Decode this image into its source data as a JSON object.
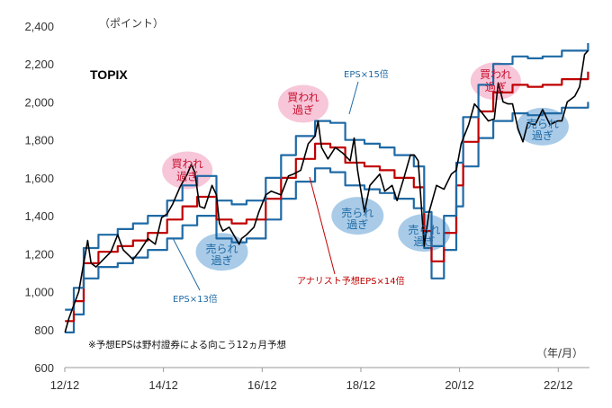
{
  "chart_data": {
    "type": "line",
    "title": "TOPIX",
    "unit_label": "（ポイント）",
    "x_unit_label": "（年/月）",
    "note": "※予想EPSは野村證券による向こう12ヵ月予想",
    "x_ticks": [
      "12/12",
      "14/12",
      "16/12",
      "18/12",
      "20/12",
      "22/12"
    ],
    "y_ticks": [
      "600",
      "800",
      "1,000",
      "1,200",
      "1,400",
      "1,600",
      "1,800",
      "2,000",
      "2,200",
      "2,400"
    ],
    "ylim": [
      600,
      2400
    ],
    "xlim": [
      2012.917,
      2023.55
    ],
    "colors": {
      "topix": "#000000",
      "eps15": "#1f6aa5",
      "eps14": "#c00000",
      "eps13": "#1f6aa5",
      "overbought": "#f7c6d9",
      "oversold": "#a9cbe8"
    },
    "series": [
      {
        "key": "topix",
        "points": [
          [
            2012.92,
            785
          ],
          [
            2013.0,
            860
          ],
          [
            2013.2,
            1000
          ],
          [
            2013.38,
            1270
          ],
          [
            2013.45,
            1150
          ],
          [
            2013.55,
            1130
          ],
          [
            2013.7,
            1170
          ],
          [
            2013.85,
            1210
          ],
          [
            2013.99,
            1300
          ],
          [
            2014.1,
            1220
          ],
          [
            2014.3,
            1170
          ],
          [
            2014.45,
            1220
          ],
          [
            2014.6,
            1280
          ],
          [
            2014.75,
            1250
          ],
          [
            2014.88,
            1390
          ],
          [
            2014.99,
            1410
          ],
          [
            2015.1,
            1460
          ],
          [
            2015.25,
            1550
          ],
          [
            2015.4,
            1620
          ],
          [
            2015.48,
            1670
          ],
          [
            2015.55,
            1630
          ],
          [
            2015.65,
            1450
          ],
          [
            2015.75,
            1440
          ],
          [
            2015.9,
            1560
          ],
          [
            2015.99,
            1510
          ],
          [
            2016.05,
            1360
          ],
          [
            2016.12,
            1320
          ],
          [
            2016.25,
            1340
          ],
          [
            2016.45,
            1250
          ],
          [
            2016.5,
            1280
          ],
          [
            2016.6,
            1300
          ],
          [
            2016.75,
            1340
          ],
          [
            2016.85,
            1420
          ],
          [
            2016.99,
            1510
          ],
          [
            2017.1,
            1530
          ],
          [
            2017.3,
            1510
          ],
          [
            2017.45,
            1610
          ],
          [
            2017.55,
            1620
          ],
          [
            2017.7,
            1640
          ],
          [
            2017.85,
            1780
          ],
          [
            2017.99,
            1820
          ],
          [
            2018.05,
            1900
          ],
          [
            2018.12,
            1760
          ],
          [
            2018.25,
            1700
          ],
          [
            2018.4,
            1760
          ],
          [
            2018.55,
            1730
          ],
          [
            2018.7,
            1690
          ],
          [
            2018.78,
            1810
          ],
          [
            2018.85,
            1640
          ],
          [
            2018.92,
            1530
          ],
          [
            2018.99,
            1420
          ],
          [
            2019.1,
            1560
          ],
          [
            2019.3,
            1620
          ],
          [
            2019.4,
            1530
          ],
          [
            2019.55,
            1560
          ],
          [
            2019.65,
            1480
          ],
          [
            2019.8,
            1610
          ],
          [
            2019.92,
            1720
          ],
          [
            2020.0,
            1720
          ],
          [
            2020.08,
            1690
          ],
          [
            2020.2,
            1240
          ],
          [
            2020.3,
            1420
          ],
          [
            2020.45,
            1560
          ],
          [
            2020.6,
            1540
          ],
          [
            2020.75,
            1620
          ],
          [
            2020.85,
            1640
          ],
          [
            2020.95,
            1780
          ],
          [
            2021.1,
            1880
          ],
          [
            2021.22,
            1990
          ],
          [
            2021.35,
            1950
          ],
          [
            2021.5,
            1900
          ],
          [
            2021.62,
            1910
          ],
          [
            2021.7,
            2100
          ],
          [
            2021.8,
            2000
          ],
          [
            2021.9,
            1990
          ],
          [
            2021.99,
            1990
          ],
          [
            2022.1,
            1860
          ],
          [
            2022.2,
            1790
          ],
          [
            2022.3,
            1890
          ],
          [
            2022.45,
            1880
          ],
          [
            2022.6,
            1960
          ],
          [
            2022.75,
            1880
          ],
          [
            2022.9,
            1900
          ],
          [
            2022.99,
            1900
          ],
          [
            2023.1,
            2000
          ],
          [
            2023.25,
            2030
          ],
          [
            2023.35,
            2080
          ],
          [
            2023.45,
            2250
          ],
          [
            2023.52,
            2270
          ]
        ]
      },
      {
        "key": "eps15",
        "name": "EPS×15倍",
        "points": [
          [
            2012.92,
            905
          ],
          [
            2013.1,
            1020
          ],
          [
            2013.3,
            1230
          ],
          [
            2013.6,
            1300
          ],
          [
            2013.99,
            1330
          ],
          [
            2014.3,
            1360
          ],
          [
            2014.6,
            1400
          ],
          [
            2014.99,
            1480
          ],
          [
            2015.3,
            1560
          ],
          [
            2015.6,
            1610
          ],
          [
            2015.99,
            1480
          ],
          [
            2016.3,
            1460
          ],
          [
            2016.6,
            1480
          ],
          [
            2016.99,
            1600
          ],
          [
            2017.3,
            1720
          ],
          [
            2017.6,
            1820
          ],
          [
            2017.99,
            1900
          ],
          [
            2018.3,
            1890
          ],
          [
            2018.6,
            1800
          ],
          [
            2018.99,
            1780
          ],
          [
            2019.3,
            1760
          ],
          [
            2019.6,
            1720
          ],
          [
            2019.99,
            1660
          ],
          [
            2020.2,
            1420
          ],
          [
            2020.35,
            1240
          ],
          [
            2020.6,
            1400
          ],
          [
            2020.85,
            1680
          ],
          [
            2020.99,
            1920
          ],
          [
            2021.3,
            2090
          ],
          [
            2021.6,
            2200
          ],
          [
            2021.99,
            2240
          ],
          [
            2022.3,
            2230
          ],
          [
            2022.6,
            2240
          ],
          [
            2022.99,
            2270
          ],
          [
            2023.52,
            2310
          ]
        ]
      },
      {
        "key": "eps14",
        "name": "アナリスト予想EPS×14倍",
        "points": [
          [
            2012.92,
            845
          ],
          [
            2013.1,
            950
          ],
          [
            2013.3,
            1150
          ],
          [
            2013.6,
            1210
          ],
          [
            2013.99,
            1240
          ],
          [
            2014.3,
            1270
          ],
          [
            2014.6,
            1310
          ],
          [
            2014.99,
            1380
          ],
          [
            2015.3,
            1450
          ],
          [
            2015.6,
            1500
          ],
          [
            2015.99,
            1380
          ],
          [
            2016.3,
            1360
          ],
          [
            2016.6,
            1380
          ],
          [
            2016.99,
            1490
          ],
          [
            2017.3,
            1600
          ],
          [
            2017.6,
            1700
          ],
          [
            2017.99,
            1780
          ],
          [
            2018.3,
            1760
          ],
          [
            2018.6,
            1680
          ],
          [
            2018.99,
            1660
          ],
          [
            2019.3,
            1640
          ],
          [
            2019.6,
            1600
          ],
          [
            2019.99,
            1550
          ],
          [
            2020.2,
            1320
          ],
          [
            2020.35,
            1160
          ],
          [
            2020.6,
            1310
          ],
          [
            2020.85,
            1560
          ],
          [
            2020.99,
            1790
          ],
          [
            2021.3,
            1950
          ],
          [
            2021.6,
            2050
          ],
          [
            2021.99,
            2090
          ],
          [
            2022.3,
            2080
          ],
          [
            2022.6,
            2090
          ],
          [
            2022.99,
            2120
          ],
          [
            2023.52,
            2160
          ]
        ]
      },
      {
        "key": "eps13",
        "name": "EPS×13倍",
        "points": [
          [
            2012.92,
            785
          ],
          [
            2013.1,
            880
          ],
          [
            2013.3,
            1070
          ],
          [
            2013.6,
            1130
          ],
          [
            2013.99,
            1150
          ],
          [
            2014.3,
            1180
          ],
          [
            2014.6,
            1220
          ],
          [
            2014.99,
            1280
          ],
          [
            2015.3,
            1350
          ],
          [
            2015.6,
            1400
          ],
          [
            2015.99,
            1280
          ],
          [
            2016.3,
            1260
          ],
          [
            2016.6,
            1280
          ],
          [
            2016.99,
            1380
          ],
          [
            2017.3,
            1490
          ],
          [
            2017.6,
            1580
          ],
          [
            2017.99,
            1650
          ],
          [
            2018.3,
            1630
          ],
          [
            2018.6,
            1560
          ],
          [
            2018.99,
            1540
          ],
          [
            2019.3,
            1520
          ],
          [
            2019.6,
            1490
          ],
          [
            2019.99,
            1440
          ],
          [
            2020.2,
            1230
          ],
          [
            2020.35,
            1070
          ],
          [
            2020.6,
            1220
          ],
          [
            2020.85,
            1450
          ],
          [
            2020.99,
            1660
          ],
          [
            2021.3,
            1810
          ],
          [
            2021.6,
            1900
          ],
          [
            2021.99,
            1940
          ],
          [
            2022.3,
            1930
          ],
          [
            2022.6,
            1940
          ],
          [
            2022.99,
            1970
          ],
          [
            2023.52,
            2000
          ]
        ]
      }
    ],
    "annotations": {
      "overbought_text": [
        "買われ",
        "過ぎ"
      ],
      "oversold_text": [
        "売られ",
        "過ぎ"
      ],
      "overbought_at": [
        [
          2015.4,
          1640
        ],
        [
          2017.75,
          1990
        ],
        [
          2021.65,
          2110
        ]
      ],
      "oversold_at": [
        [
          2016.1,
          1210
        ],
        [
          2018.85,
          1400
        ],
        [
          2020.2,
          1310
        ],
        [
          2022.6,
          1870
        ]
      ]
    }
  }
}
